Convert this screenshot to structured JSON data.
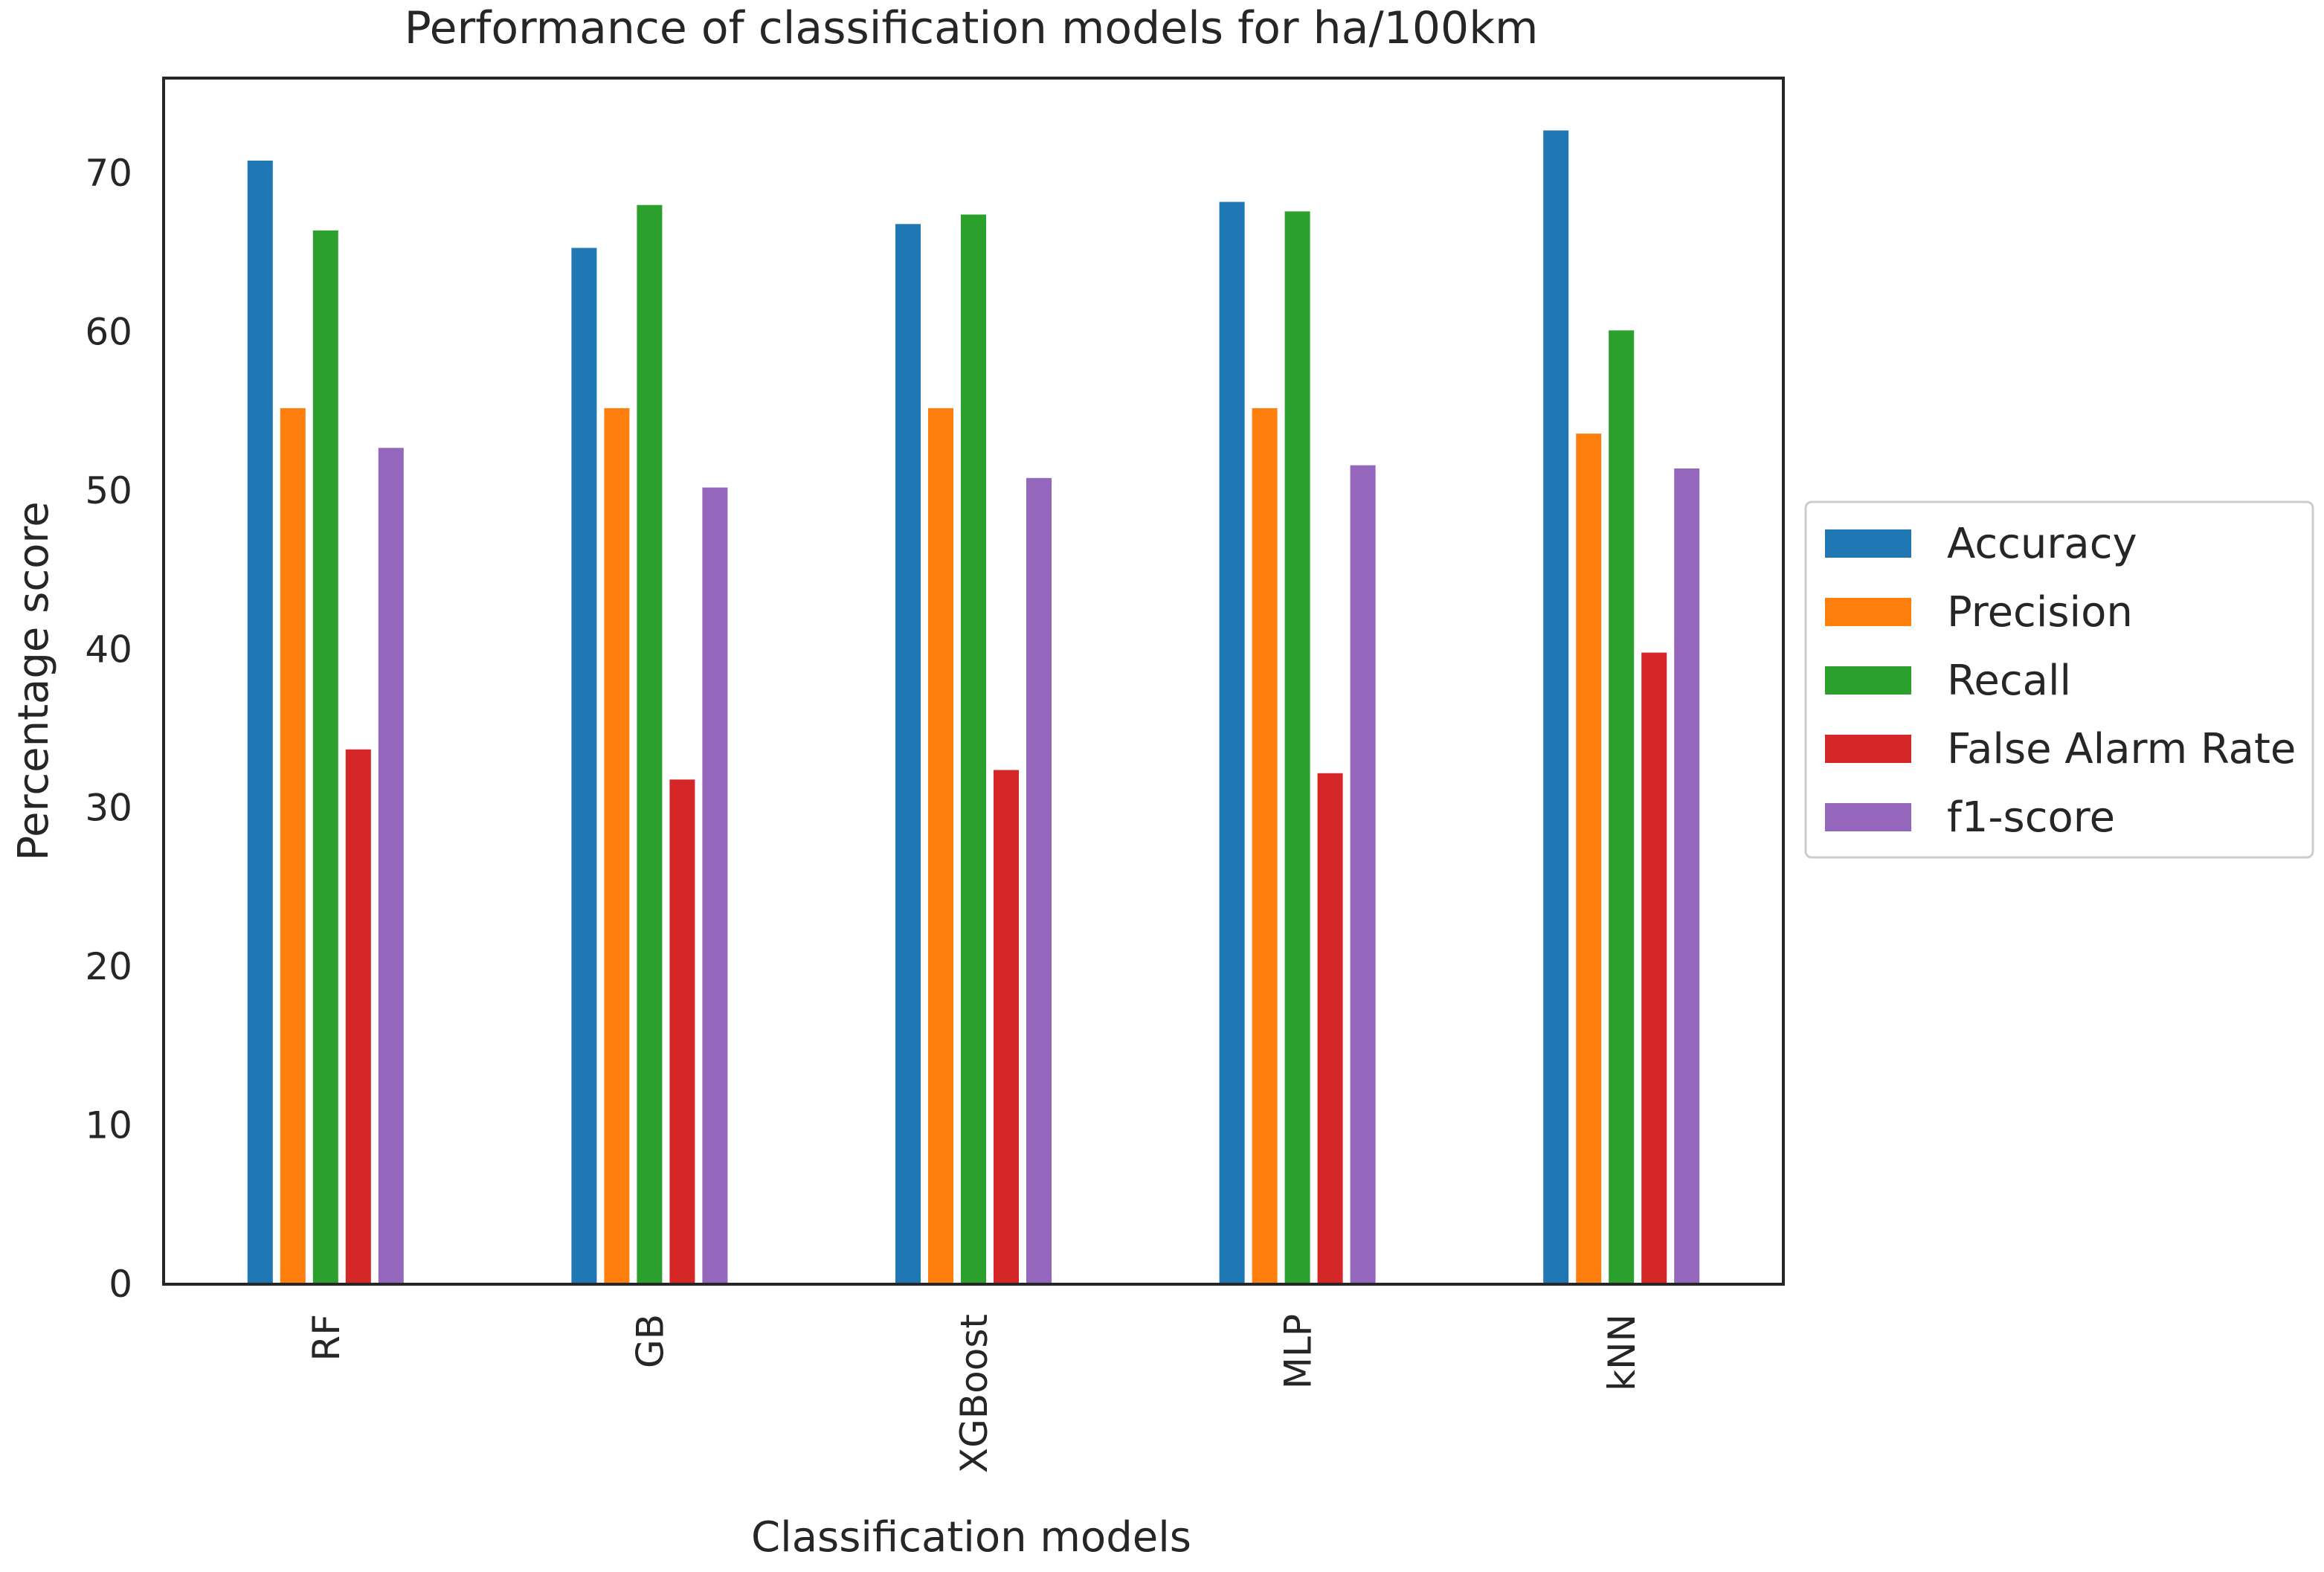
{
  "chart_data": {
    "type": "bar",
    "title": "Performance of classification models for ha/100km",
    "xlabel": "Classification models",
    "ylabel": "Percentage score",
    "categories": [
      "RF",
      "GB",
      "XGBoost",
      "MLP",
      "kNN"
    ],
    "ylim": [
      0,
      76
    ],
    "yticks": [
      0,
      10,
      20,
      30,
      40,
      50,
      60,
      70
    ],
    "grid": false,
    "legend_position": "right",
    "series": [
      {
        "name": "Accuracy",
        "color": "#1f77b4",
        "values": [
          70.8,
          65.3,
          66.8,
          68.2,
          72.7
        ]
      },
      {
        "name": "Precision",
        "color": "#ff7f0e",
        "values": [
          55.2,
          55.2,
          55.2,
          55.2,
          53.6
        ]
      },
      {
        "name": "Recall",
        "color": "#2ca02c",
        "values": [
          66.4,
          68.0,
          67.4,
          67.6,
          60.1
        ]
      },
      {
        "name": "False Alarm Rate",
        "color": "#d62728",
        "values": [
          33.7,
          31.8,
          32.4,
          32.2,
          39.8
        ]
      },
      {
        "name": "f1-score",
        "color": "#9467bd",
        "values": [
          52.7,
          50.2,
          50.8,
          51.6,
          51.4
        ]
      }
    ]
  }
}
